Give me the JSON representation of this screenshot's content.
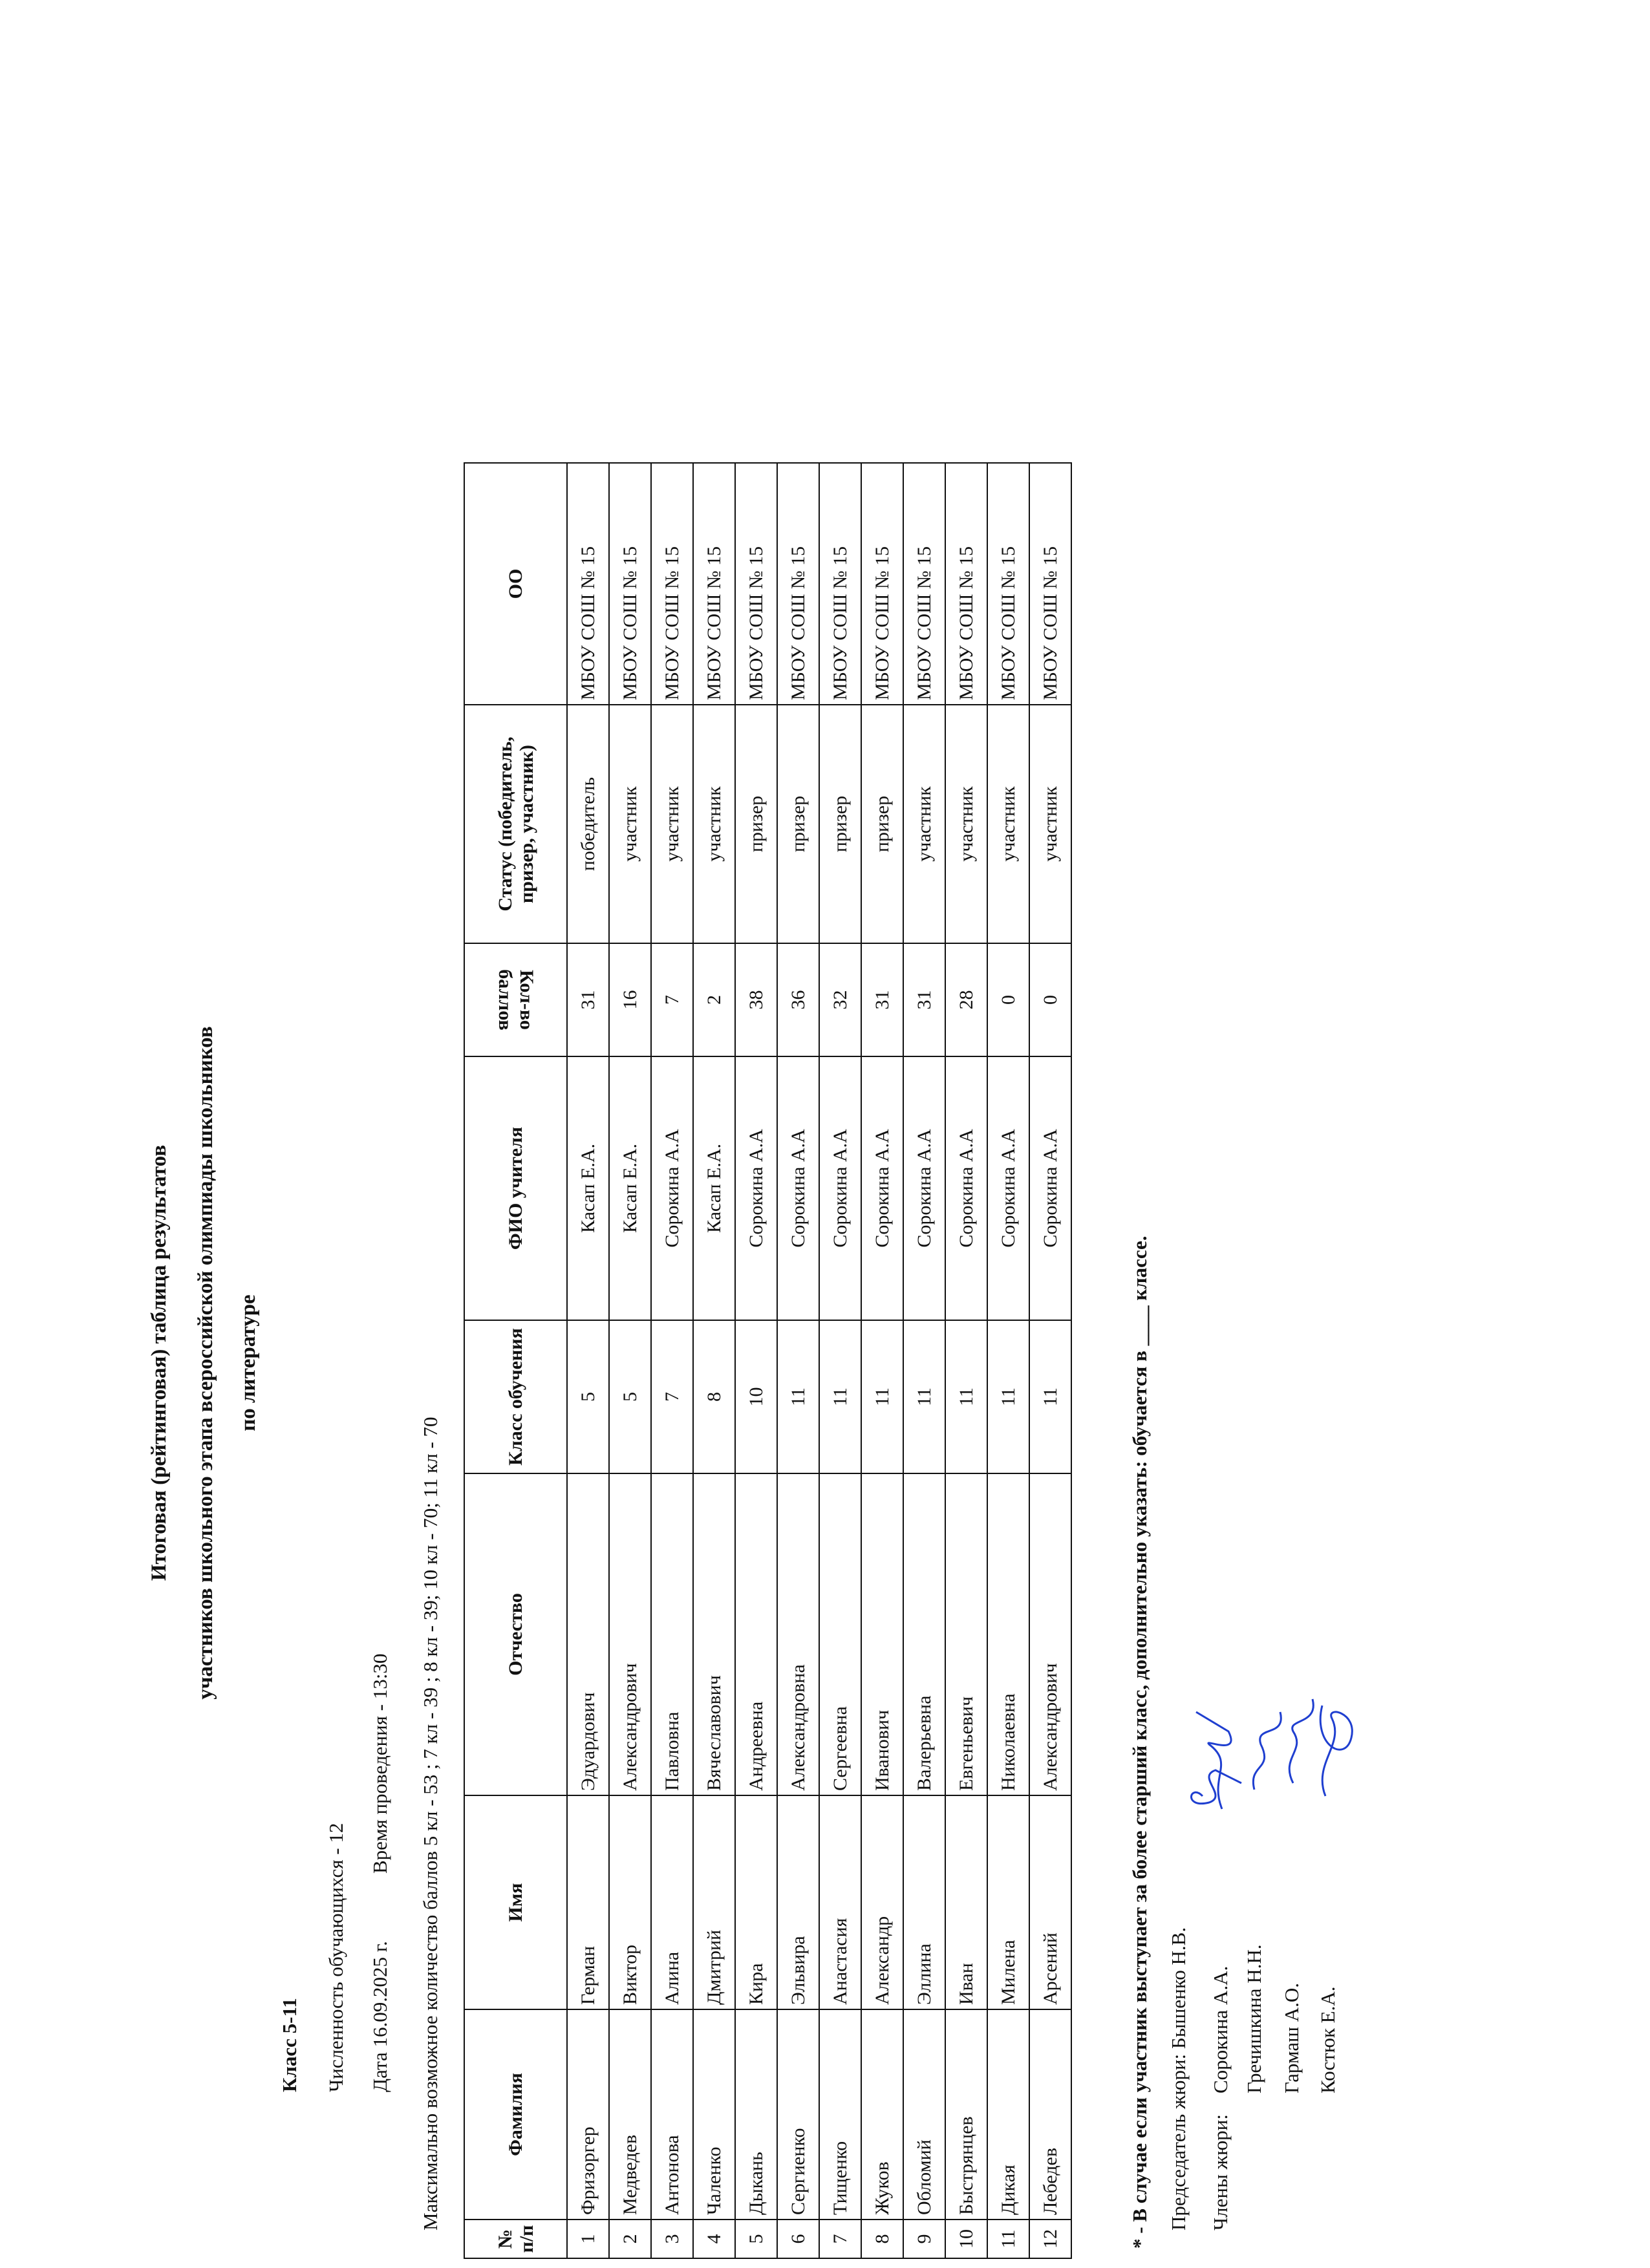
{
  "title": {
    "line1": "Итоговая (рейтинговая) таблица результатов",
    "line2": "участников школьного этапа всероссийской олимпиады школьников",
    "line3": "по литературе"
  },
  "info": {
    "class_label": "Класс 5-11",
    "count": "Численность обучающихся  - 12",
    "date": "Дата 16.09.2025 г.",
    "time": "Время проведения  - 13:30",
    "max_score": "Максимально возможное количество баллов 5 кл - 53 ; 7 кл - 39 ; 8 кл - 39; 10 кл - 70; 11 кл - 70"
  },
  "table": {
    "headers": [
      "№ п/п",
      "Фамилия",
      "Имя",
      "Отчество",
      "Класс обучения",
      "ФИО учителя",
      "Кол-во баллов",
      "Статус (победитель, призер, участник)",
      "ОО"
    ],
    "rows": [
      [
        "1",
        "Фризоргер",
        "Герман",
        "Эдуардович",
        "5",
        "Касап Е.А.",
        "31",
        "победитель",
        "МБОУ СОШ № 15"
      ],
      [
        "2",
        "Медведев",
        "Виктор",
        "Александрович",
        "5",
        "Касап Е.А.",
        "16",
        "участник",
        "МБОУ СОШ № 15"
      ],
      [
        "3",
        "Антонова",
        "Алина",
        "Павловна",
        "7",
        "Сорокина А.А",
        "7",
        "участник",
        "МБОУ СОШ № 15"
      ],
      [
        "4",
        "Чаленко",
        "Дмитрий",
        "Вячеславович",
        "8",
        "Касап Е.А.",
        "2",
        "участник",
        "МБОУ СОШ № 15"
      ],
      [
        "5",
        "Дыкань",
        "Кира",
        "Андреевна",
        "10",
        "Сорокина А.А",
        "38",
        "призер",
        "МБОУ СОШ № 15"
      ],
      [
        "6",
        "Сергиенко",
        "Эльвира",
        "Александровна",
        "11",
        "Сорокина А.А",
        "36",
        "призер",
        "МБОУ СОШ № 15"
      ],
      [
        "7",
        "Тищенко",
        "Анастасия",
        "Сергеевна",
        "11",
        "Сорокина А.А",
        "32",
        "призер",
        "МБОУ СОШ № 15"
      ],
      [
        "8",
        "Жуков",
        "Александр",
        "Иванович",
        "11",
        "Сорокина А.А",
        "31",
        "призер",
        "МБОУ СОШ № 15"
      ],
      [
        "9",
        "Обломий",
        "Эллина",
        "Валерьевна",
        "11",
        "Сорокина А.А",
        "31",
        "участник",
        "МБОУ СОШ № 15"
      ],
      [
        "10",
        "Быстрянцев",
        "Иван",
        "Евгеньевич",
        "11",
        "Сорокина А.А",
        "28",
        "участник",
        "МБОУ СОШ № 15"
      ],
      [
        "11",
        "Дикая",
        "Милена",
        "Николаевна",
        "11",
        "Сорокина А.А",
        "0",
        "участник",
        "МБОУ СОШ № 15"
      ],
      [
        "12",
        "Лебедев",
        "Арсений",
        "Александрович",
        "11",
        "Сорокина А.А",
        "0",
        "участник",
        "МБОУ СОШ № 15"
      ]
    ]
  },
  "footer": {
    "note": "* - В случае если участник выступает за более старший класс, дополнительно указать: обучается в ____ классе.",
    "chair": "Председатель жюри: Бышенко Н.В.",
    "members_label": "Члены жюри:",
    "members": [
      "Сорокина А.А.",
      "Гречишкина Н.Н.",
      "Гармаш А.О.",
      "Костюк Е.А."
    ]
  },
  "colors": {
    "ink": "#111111",
    "signature": "#1f3fd0"
  }
}
